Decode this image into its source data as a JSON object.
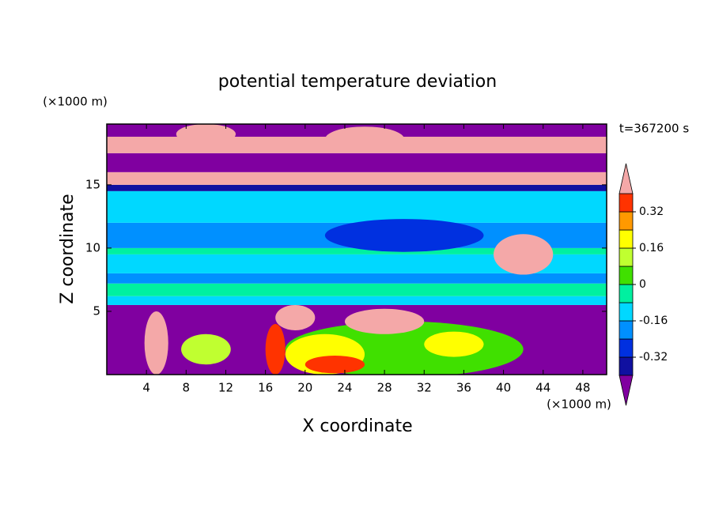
{
  "chart_data": {
    "type": "contour",
    "title": "potential temperature deviation",
    "x_label": "X coordinate",
    "y_label": "Z coordinate",
    "x_unit": "(×1000 m)",
    "y_unit": "(×1000 m)",
    "annotation": "t=367200 s",
    "xlim": [
      0,
      50.4
    ],
    "ylim": [
      0,
      19.8
    ],
    "xticks": [
      4,
      8,
      12,
      16,
      20,
      24,
      28,
      32,
      36,
      40,
      44,
      48
    ],
    "yticks": [
      5,
      10,
      15
    ],
    "levels": [
      -0.4,
      -0.32,
      -0.24,
      -0.16,
      -0.08,
      0,
      0.08,
      0.16,
      0.24,
      0.32,
      0.4
    ],
    "colors": [
      "#8000a0",
      "#1010a0",
      "#0030e0",
      "#0090ff",
      "#00d8ff",
      "#00f0a0",
      "#40e000",
      "#c0ff30",
      "#ffff00",
      "#ff9900",
      "#ff3300",
      "#f4a8a8"
    ],
    "cticks": [
      -0.32,
      -0.16,
      0,
      0.16,
      0.32
    ],
    "layers": [
      {
        "z": [
          0,
          5.5
        ],
        "value": -0.44
      },
      {
        "z": [
          5.5,
          6.2
        ],
        "value": -0.12
      },
      {
        "z": [
          6.2,
          7.2
        ],
        "value": -0.04
      },
      {
        "z": [
          7.2,
          8
        ],
        "value": -0.2
      },
      {
        "z": [
          8,
          9.5
        ],
        "value": -0.12
      },
      {
        "z": [
          9.5,
          10
        ],
        "value": -0.04
      },
      {
        "z": [
          10,
          12
        ],
        "value": -0.2
      },
      {
        "z": [
          12,
          14.5
        ],
        "value": -0.12
      },
      {
        "z": [
          14.5,
          15
        ],
        "value": -0.36
      },
      {
        "z": [
          15,
          16
        ],
        "value": 0.44
      },
      {
        "z": [
          16,
          17.5
        ],
        "value": -0.44
      },
      {
        "z": [
          17.5,
          18.8
        ],
        "value": 0.44
      },
      {
        "z": [
          18.8,
          19.8
        ],
        "value": -0.44
      }
    ],
    "blobs": [
      {
        "x": 30,
        "z": 2,
        "rx": 12,
        "rz": 2.2,
        "value": 0.04
      },
      {
        "x": 10,
        "z": 2,
        "rx": 2.5,
        "rz": 1.2,
        "value": 0.12
      },
      {
        "x": 22,
        "z": 1.6,
        "rx": 4,
        "rz": 1.6,
        "value": 0.2
      },
      {
        "x": 17,
        "z": 2,
        "rx": 1,
        "rz": 2,
        "value": 0.36
      },
      {
        "x": 23,
        "z": 0.8,
        "rx": 3,
        "rz": 0.7,
        "value": 0.36
      },
      {
        "x": 35,
        "z": 2.4,
        "rx": 3,
        "rz": 1,
        "value": 0.2
      },
      {
        "x": 28,
        "z": 4.2,
        "rx": 4,
        "rz": 1,
        "value": 0.44
      },
      {
        "x": 19,
        "z": 4.5,
        "rx": 2,
        "rz": 1,
        "value": 0.44
      },
      {
        "x": 5,
        "z": 2.5,
        "rx": 1.2,
        "rz": 2.5,
        "value": 0.44
      },
      {
        "x": 42,
        "z": 9.5,
        "rx": 3,
        "rz": 1.6,
        "value": 0.44
      },
      {
        "x": 30,
        "z": 11,
        "rx": 8,
        "rz": 1.3,
        "value": -0.28
      },
      {
        "x": 26,
        "z": 18.6,
        "rx": 4,
        "rz": 1,
        "value": 0.44
      },
      {
        "x": 10,
        "z": 19,
        "rx": 3,
        "rz": 0.8,
        "value": 0.44
      }
    ]
  }
}
